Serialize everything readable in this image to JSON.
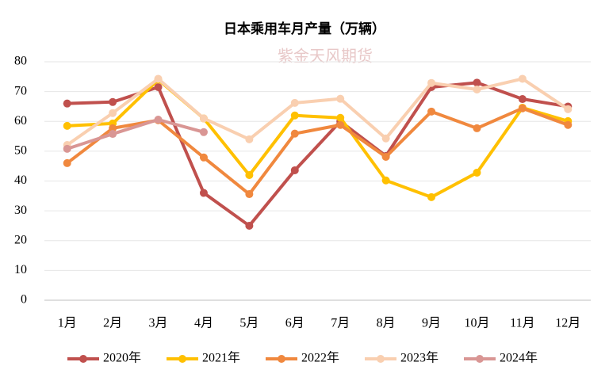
{
  "chart_data": {
    "type": "line",
    "title": "日本乘用车月产量（万辆）",
    "watermark": "紫金天风期货",
    "categories": [
      "1月",
      "2月",
      "3月",
      "4月",
      "5月",
      "6月",
      "7月",
      "8月",
      "9月",
      "10月",
      "11月",
      "12月"
    ],
    "series": [
      {
        "name": "2020年",
        "color": "#c0504d",
        "values": [
          66,
          66.5,
          71.5,
          36,
          25,
          43.6,
          60,
          48.4,
          71.5,
          73,
          67.5,
          65
        ]
      },
      {
        "name": "2021年",
        "color": "#ffc000",
        "values": [
          58.5,
          59.3,
          74,
          61,
          42,
          62,
          61.2,
          40.2,
          34.6,
          42.8,
          64.6,
          60.1
        ]
      },
      {
        "name": "2022年",
        "color": "#f0883e",
        "values": [
          46,
          57.7,
          60.4,
          47.9,
          35.6,
          55.9,
          58.8,
          48.1,
          63.3,
          57.7,
          64.4,
          58.8
        ]
      },
      {
        "name": "2023年",
        "color": "#f9cfb0",
        "values": [
          52.1,
          62.8,
          74.3,
          61,
          54,
          66.2,
          67.6,
          54.3,
          72.9,
          70.7,
          74.3,
          64.1
        ]
      },
      {
        "name": "2024年",
        "color": "#d99694",
        "values": [
          50.8,
          55.8,
          60.6,
          56.4,
          null,
          null,
          null,
          null,
          null,
          null,
          null,
          null
        ]
      }
    ],
    "ylim": [
      0,
      80
    ],
    "yticks": [
      0,
      10,
      20,
      30,
      40,
      50,
      60,
      70,
      80
    ],
    "grid": true,
    "legend": "bottom"
  }
}
